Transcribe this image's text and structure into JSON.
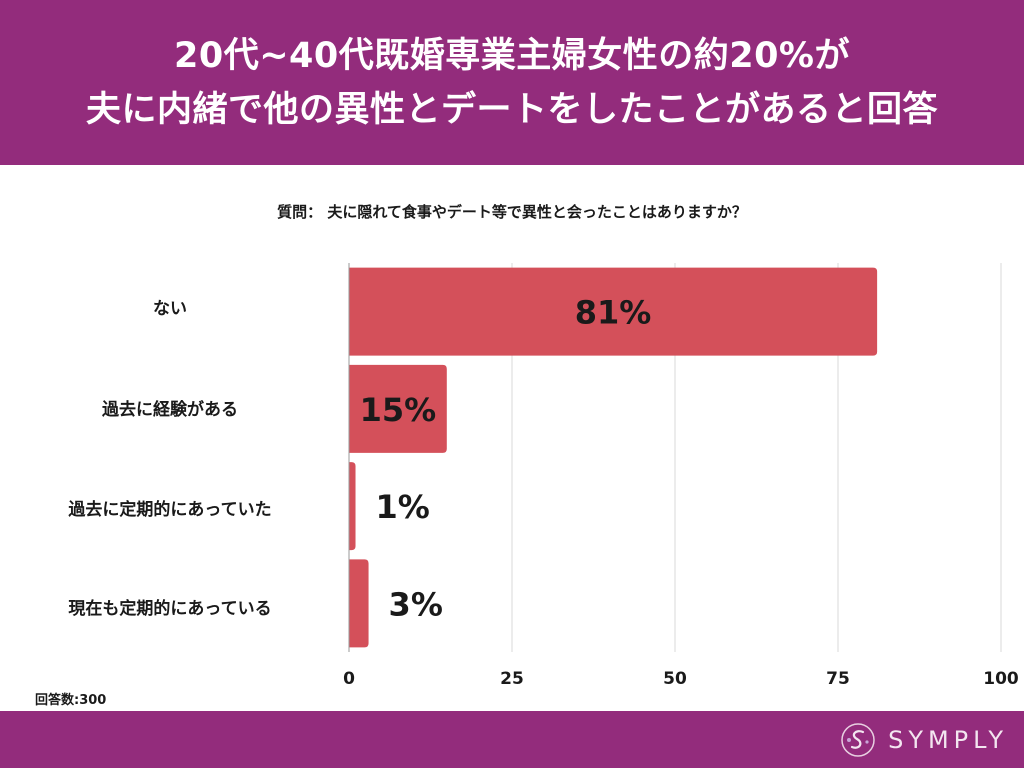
{
  "header": {
    "title_line1": "20代~40代既婚専業主婦女性の約20%が",
    "title_line2": "夫に内緒で他の異性とデートをしたことがあると回答"
  },
  "question": "質問： 夫に隠れて食事やデート等で異性と会ったことはありますか？",
  "chart_data": {
    "type": "bar",
    "orientation": "horizontal",
    "categories": [
      "ない",
      "過去に経験がある",
      "過去に定期的にあっていた",
      "現在も定期的にあっている"
    ],
    "values": [
      81,
      15,
      1,
      3
    ],
    "value_labels": [
      "81%",
      "15%",
      "1%",
      "3%"
    ],
    "xlim": [
      0,
      100
    ],
    "xticks": [
      0,
      25,
      50,
      75,
      100
    ],
    "grid": true,
    "bar_color": "#d4505a"
  },
  "footnote": "回答数:300",
  "footer": {
    "brand": "SYMPLY"
  },
  "colors": {
    "header_bg": "#932c7c",
    "bar": "#d4505a",
    "grid": "#d9d9d9"
  }
}
